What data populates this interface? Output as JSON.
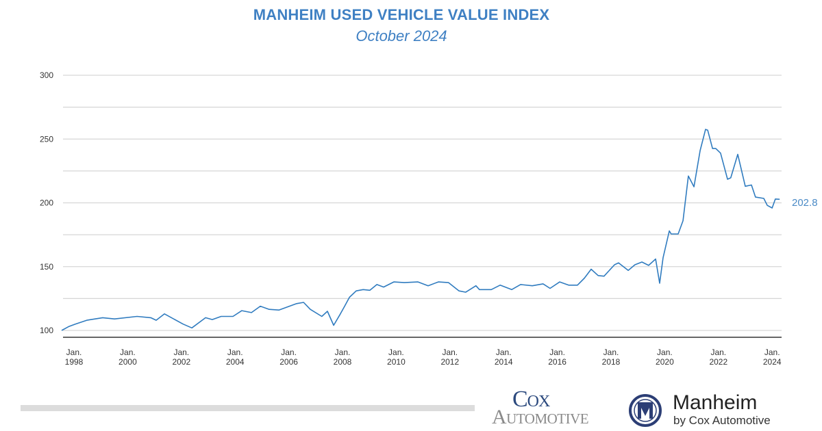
{
  "chart_data": {
    "type": "line",
    "title": "MANHEIM USED VEHICLE VALUE INDEX",
    "subtitle": "October 2024",
    "xlabel": "",
    "ylabel": "",
    "ylim": [
      100,
      300
    ],
    "yticks": [
      100,
      150,
      200,
      250,
      300
    ],
    "ygrid": [
      100,
      125,
      150,
      175,
      200,
      225,
      250,
      275,
      300
    ],
    "xlim": [
      1997.55,
      2024.3
    ],
    "xticks": [
      {
        "year": 1998,
        "line1": "Jan.",
        "line2": "1998"
      },
      {
        "year": 2000,
        "line1": "Jan.",
        "line2": "2000"
      },
      {
        "year": 2002,
        "line1": "Jan.",
        "line2": "2002"
      },
      {
        "year": 2004,
        "line1": "Jan.",
        "line2": "2004"
      },
      {
        "year": 2006,
        "line1": "Jan.",
        "line2": "2006"
      },
      {
        "year": 2008,
        "line1": "Jan.",
        "line2": "2008"
      },
      {
        "year": 2010,
        "line1": "Jan.",
        "line2": "2010"
      },
      {
        "year": 2012,
        "line1": "Jan.",
        "line2": "2012"
      },
      {
        "year": 2014,
        "line1": "Jan.",
        "line2": "2014"
      },
      {
        "year": 2016,
        "line1": "Jan.",
        "line2": "2016"
      },
      {
        "year": 2018,
        "line1": "Jan.",
        "line2": "2018"
      },
      {
        "year": 2020,
        "line1": "Jan.",
        "line2": "2020"
      },
      {
        "year": 2022,
        "line1": "Jan.",
        "line2": "2022"
      },
      {
        "year": 2024,
        "line1": "Jan.",
        "line2": "2024"
      }
    ],
    "grid": true,
    "series": [
      {
        "name": "Manheim Index",
        "color": "#2f7bbf",
        "x": [
          1997.54,
          1997.8,
          1998.05,
          1998.48,
          1998.64,
          1999.07,
          1999.51,
          2000.35,
          2000.86,
          2001.06,
          2001.37,
          2002.06,
          2002.39,
          2002.9,
          2003.15,
          2003.48,
          2003.92,
          2004.25,
          2004.61,
          2004.94,
          2005.27,
          2005.63,
          2006.29,
          2006.55,
          2006.8,
          2007.23,
          2007.44,
          2007.67,
          2007.92,
          2008.08,
          2008.26,
          2008.51,
          2008.77,
          2009.02,
          2009.28,
          2009.53,
          2009.91,
          2010.3,
          2010.81,
          2011.19,
          2011.57,
          2011.95,
          2012.34,
          2012.59,
          2012.97,
          2013.1,
          2013.54,
          2013.87,
          2014.3,
          2014.63,
          2015.07,
          2015.47,
          2015.73,
          2016.09,
          2016.42,
          2016.75,
          2017.01,
          2017.26,
          2017.52,
          2017.74,
          2018.13,
          2018.28,
          2018.64,
          2018.89,
          2019.15,
          2019.4,
          2019.66,
          2019.81,
          2019.94,
          2020.17,
          2020.24,
          2020.5,
          2020.68,
          2020.88,
          2021.09,
          2021.32,
          2021.52,
          2021.6,
          2021.78,
          2021.9,
          2022.08,
          2022.34,
          2022.46,
          2022.72,
          2023.0,
          2023.23,
          2023.38,
          2023.69,
          2023.82,
          2024.0,
          2024.12,
          2024.28
        ],
        "values": [
          100,
          103,
          105,
          108,
          108.5,
          110,
          109,
          111,
          110,
          108,
          113,
          105,
          102,
          110,
          108.5,
          111,
          111,
          115.5,
          114,
          119,
          116.5,
          116,
          121,
          122,
          116.5,
          111,
          115,
          104,
          113,
          119,
          126,
          131,
          132,
          131.5,
          136,
          134,
          138,
          137.5,
          138,
          135,
          138,
          137.5,
          131,
          130,
          135,
          132,
          132,
          135.5,
          132,
          136,
          135,
          136.5,
          133,
          138,
          135.5,
          135.5,
          141,
          148,
          143,
          142.5,
          151.5,
          153,
          147,
          151.5,
          153.6,
          151,
          156,
          137,
          157,
          178,
          175.6,
          175.6,
          186,
          221,
          212.6,
          241,
          257.6,
          257,
          242.6,
          242.6,
          239,
          218.5,
          219.6,
          238,
          213,
          214,
          204.5,
          203.5,
          198,
          196,
          203,
          202.8
        ]
      }
    ],
    "end_label": "202.8"
  },
  "logos": {
    "cox_line1": "Cox",
    "cox_line2": "Automotive",
    "manheim_name": "Manheim",
    "manheim_tagline": "by Cox Automotive"
  }
}
